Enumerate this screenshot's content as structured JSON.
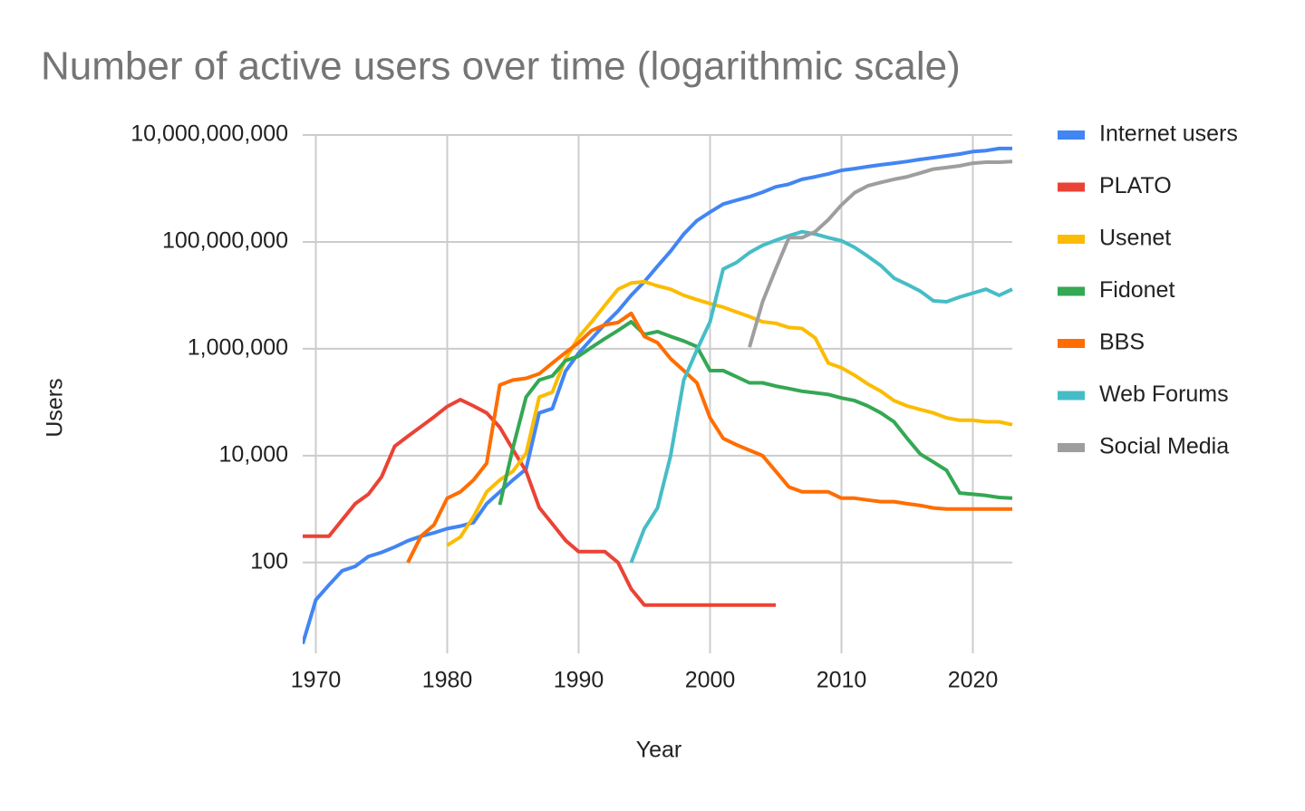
{
  "chart_data": {
    "type": "line",
    "title": "Number of active users over time (logarithmic scale)",
    "x_label": "Year",
    "y_label": "Users",
    "log_scale": true,
    "grid": true,
    "legend": "right",
    "xlim": [
      1969,
      2023
    ],
    "xticks": [
      1970,
      1980,
      1990,
      2000,
      2010,
      2020
    ],
    "ylim": [
      2,
      10000000000
    ],
    "yticks": [
      {
        "value": 100,
        "label": "100"
      },
      {
        "value": 10000,
        "label": "10,000"
      },
      {
        "value": 1000000,
        "label": "1,000,000"
      },
      {
        "value": 100000000,
        "label": "100,000,000"
      },
      {
        "value": 10000000000,
        "label": "10,000,000,000"
      }
    ],
    "x": [
      1969,
      1970,
      1971,
      1972,
      1973,
      1974,
      1975,
      1976,
      1977,
      1978,
      1979,
      1980,
      1981,
      1982,
      1983,
      1984,
      1985,
      1986,
      1987,
      1988,
      1989,
      1990,
      1991,
      1992,
      1993,
      1994,
      1995,
      1996,
      1997,
      1998,
      1999,
      2000,
      2001,
      2002,
      2003,
      2004,
      2005,
      2006,
      2007,
      2008,
      2009,
      2010,
      2011,
      2012,
      2013,
      2014,
      2015,
      2016,
      2017,
      2018,
      2019,
      2020,
      2021,
      2022,
      2023
    ],
    "series": [
      {
        "name": "Internet users",
        "color": "#4285f4",
        "values": [
          3,
          20,
          38,
          70,
          85,
          130,
          155,
          195,
          255,
          310,
          360,
          430,
          480,
          560,
          1260,
          2100,
          3500,
          5600,
          63000,
          76000,
          380000,
          830000,
          1550000,
          2900000,
          5100000,
          10000000,
          18000000,
          35000000,
          67000000,
          140000000,
          250000000,
          360000000,
          510000000,
          600000000,
          700000000,
          850000000,
          1070000000,
          1200000000,
          1480000000,
          1650000000,
          1870000000,
          2180000000,
          2350000000,
          2560000000,
          2770000000,
          2970000000,
          3200000000,
          3500000000,
          3770000000,
          4080000000,
          4400000000,
          4900000000,
          5100000000,
          5600000000,
          5600000000
        ]
      },
      {
        "name": "PLATO",
        "color": "#ea4335",
        "values": [
          310,
          310,
          310,
          630,
          1260,
          1900,
          4000,
          15000,
          23000,
          35000,
          53000,
          83000,
          112000,
          85000,
          63000,
          34000,
          13000,
          5100,
          1070,
          530,
          260,
          160,
          160,
          160,
          100,
          32,
          16,
          16,
          16,
          16,
          16,
          16,
          16,
          16,
          16,
          16,
          16,
          null,
          null,
          null,
          null,
          null,
          null,
          null,
          null,
          null,
          null,
          null,
          null,
          null,
          null,
          null,
          null,
          null,
          null
        ]
      },
      {
        "name": "Usenet",
        "color": "#fbbc04",
        "values": [
          null,
          null,
          null,
          null,
          null,
          null,
          null,
          null,
          null,
          null,
          null,
          210,
          300,
          720,
          2100,
          3500,
          5100,
          11000,
          125000,
          155000,
          650000,
          1650000,
          3200000,
          6500000,
          13000000,
          17000000,
          18000000,
          15000000,
          13000000,
          10000000,
          8300000,
          7000000,
          6000000,
          4900000,
          4000000,
          3200000,
          3000000,
          2500000,
          2400000,
          1600000,
          540000,
          440000,
          320000,
          220000,
          160000,
          107000,
          85000,
          73000,
          63000,
          51000,
          46000,
          46000,
          43000,
          43000,
          38000
        ]
      },
      {
        "name": "Fidonet",
        "color": "#34a853",
        "values": [
          null,
          null,
          null,
          null,
          null,
          null,
          null,
          null,
          null,
          null,
          null,
          null,
          null,
          null,
          null,
          1200,
          14000,
          125000,
          260000,
          310000,
          600000,
          730000,
          1070000,
          1550000,
          2200000,
          3200000,
          1850000,
          2100000,
          1700000,
          1400000,
          1100000,
          390000,
          390000,
          300000,
          230000,
          230000,
          200000,
          180000,
          160000,
          150000,
          140000,
          120000,
          107000,
          85000,
          63000,
          43000,
          21000,
          10700,
          7600,
          5300,
          2000,
          1900,
          1800,
          1650,
          1600
        ]
      },
      {
        "name": "BBS",
        "color": "#ff6d01",
        "values": [
          null,
          null,
          null,
          null,
          null,
          null,
          null,
          null,
          100,
          310,
          510,
          1600,
          2100,
          3500,
          7200,
          210000,
          260000,
          280000,
          340000,
          540000,
          850000,
          1300000,
          2200000,
          2800000,
          3100000,
          4600000,
          1700000,
          1300000,
          650000,
          390000,
          230000,
          51000,
          21000,
          16000,
          12600,
          10000,
          5100,
          2600,
          2100,
          2100,
          2100,
          1600,
          1600,
          1480,
          1380,
          1380,
          1260,
          1170,
          1050,
          1000,
          1000,
          1000,
          1000,
          1000,
          1000
        ]
      },
      {
        "name": "Web Forums",
        "color": "#46bdc6",
        "values": [
          null,
          null,
          null,
          null,
          null,
          null,
          null,
          null,
          null,
          null,
          null,
          null,
          null,
          null,
          null,
          null,
          null,
          null,
          null,
          null,
          null,
          null,
          null,
          null,
          null,
          100,
          430,
          1050,
          10000,
          260000,
          950000,
          3200000,
          31000000,
          41000000,
          63000000,
          86000000,
          107000000,
          130000000,
          155000000,
          140000000,
          120000000,
          105000000,
          79000000,
          54000000,
          36000000,
          21000000,
          16000000,
          12000000,
          7900000,
          7600000,
          9300000,
          11000000,
          13000000,
          10000000,
          13000000
        ]
      },
      {
        "name": "Social Media",
        "color": "#9e9e9e",
        "values": [
          null,
          null,
          null,
          null,
          null,
          null,
          null,
          null,
          null,
          null,
          null,
          null,
          null,
          null,
          null,
          null,
          null,
          null,
          null,
          null,
          null,
          null,
          null,
          null,
          null,
          null,
          null,
          null,
          null,
          null,
          null,
          null,
          null,
          null,
          1070000,
          7600000,
          31000000,
          120000000,
          120000000,
          155000000,
          260000000,
          490000000,
          830000000,
          1120000000,
          1300000000,
          1480000000,
          1650000000,
          1950000000,
          2300000000,
          2460000000,
          2650000000,
          2970000000,
          3100000000,
          3100000000,
          3200000000
        ]
      }
    ]
  }
}
